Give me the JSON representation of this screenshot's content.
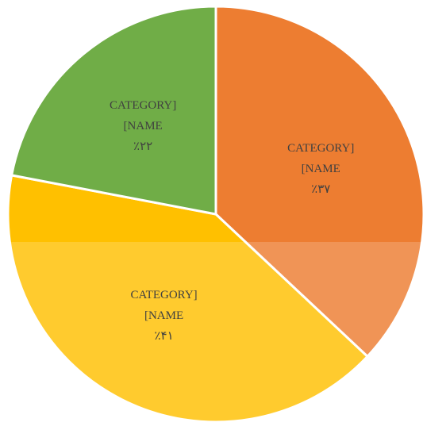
{
  "chart_data": {
    "type": "pie",
    "categories": [
      "CATEGORY] [NAME",
      "CATEGORY] [NAME",
      "CATEGORY] [NAME"
    ],
    "values": [
      37,
      41,
      22
    ],
    "value_labels": [
      "٪۳۷",
      "٪۴۱",
      "٪۲۲"
    ],
    "colors": [
      "#ED7D31",
      "#FFC000",
      "#70AD47"
    ]
  }
}
